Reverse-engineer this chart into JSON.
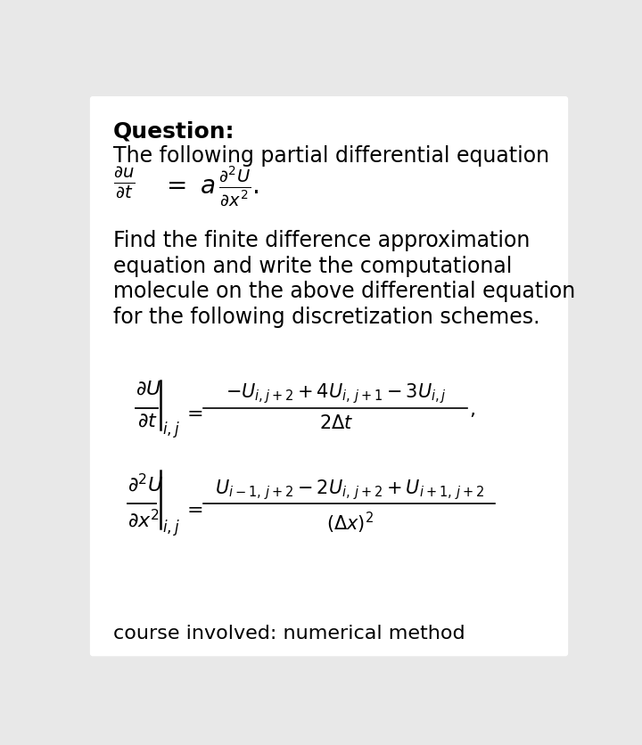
{
  "bg_color": "#e8e8e8",
  "card_color": "#ffffff",
  "title": "Question:",
  "body_fontsize": 17,
  "math_fontsize": 16,
  "small_math_fontsize": 14,
  "footer": "course involved: numerical method",
  "line1": "The following partial differential equation",
  "body_lines": [
    "Find the finite difference approximation",
    "equation and write the computational",
    "molecule on the above differential equation",
    "for the following discretization schemes."
  ]
}
